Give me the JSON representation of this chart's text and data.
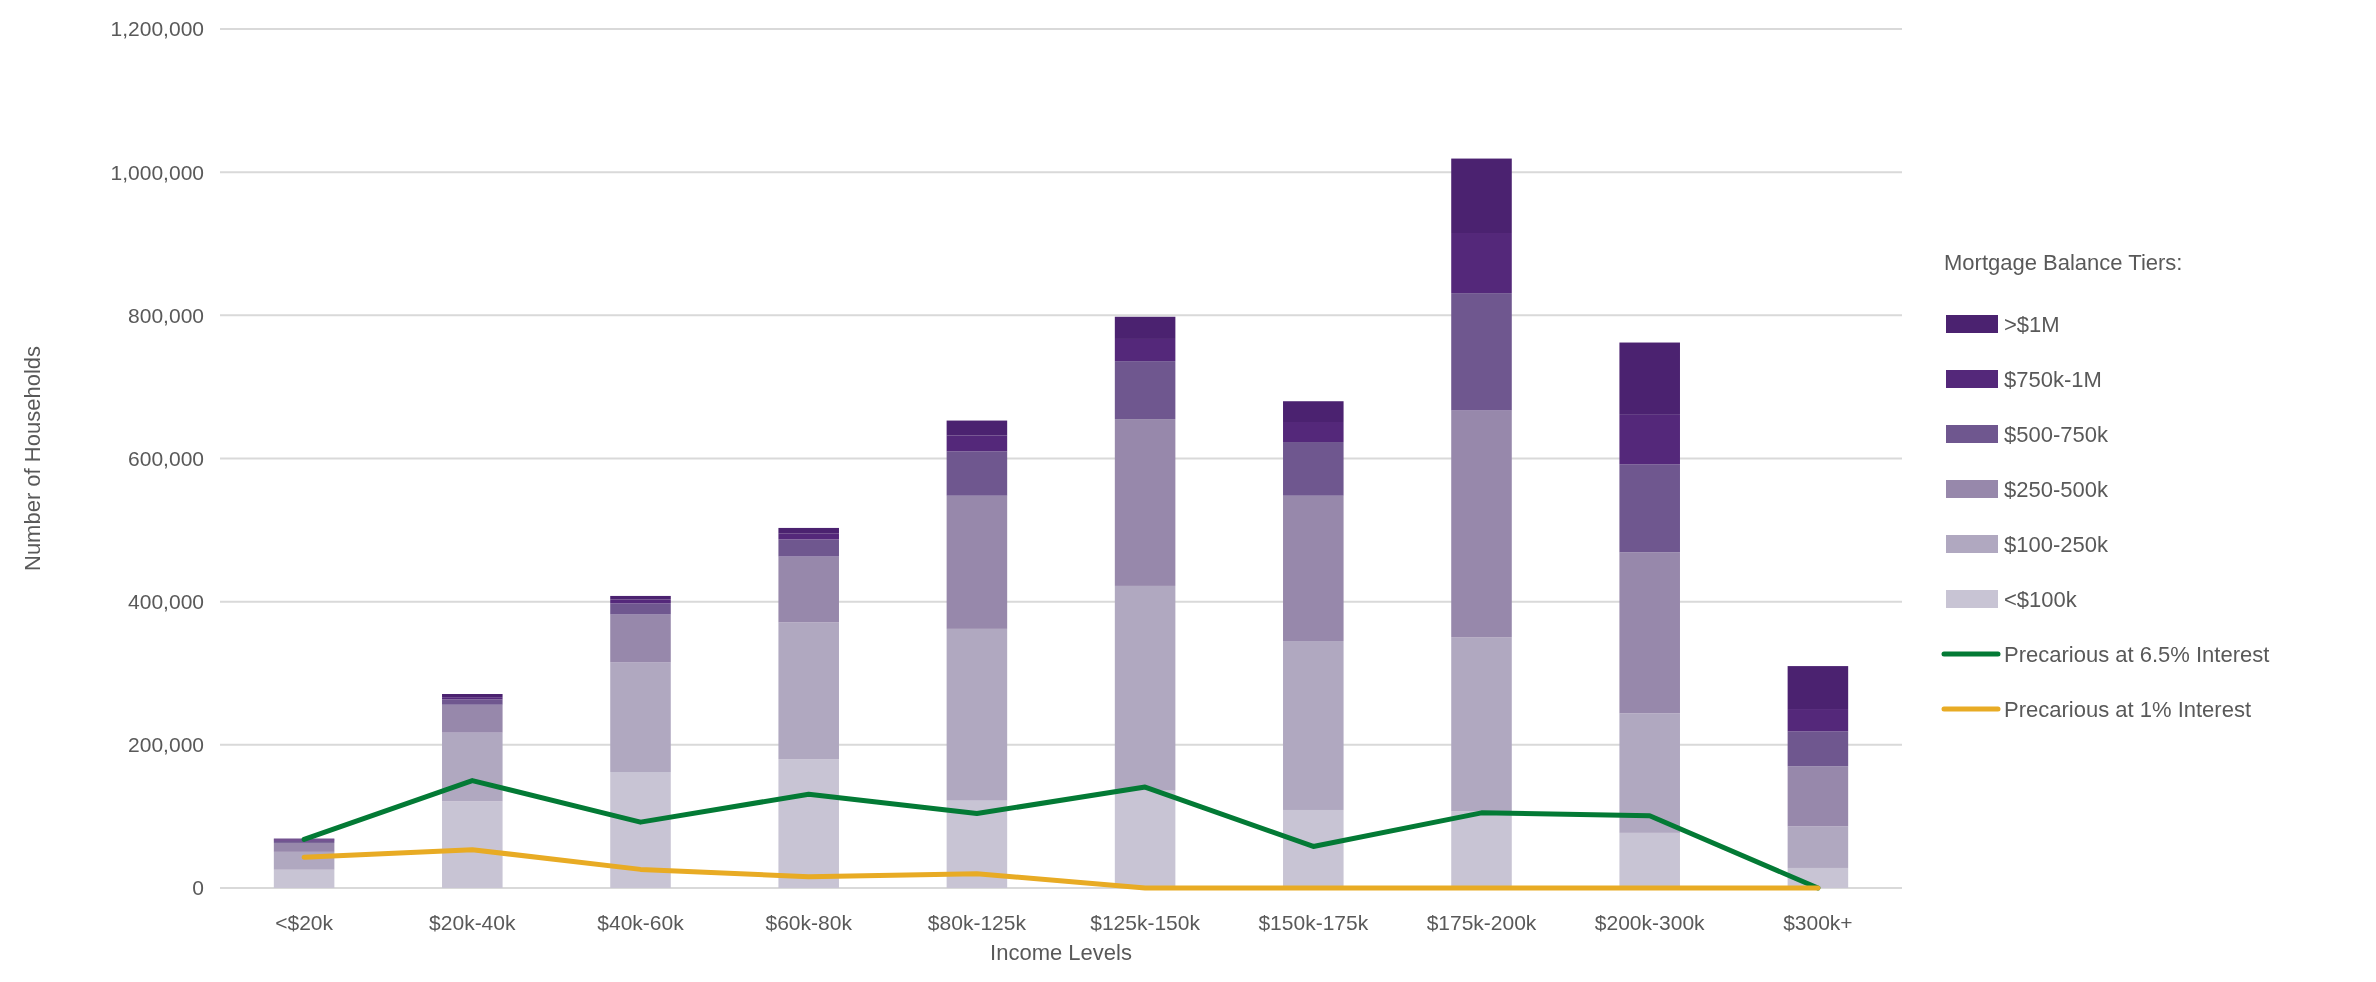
{
  "chart_data": {
    "type": "bar",
    "stacked": true,
    "xlabel": "Income Levels",
    "ylabel": "Number of Households",
    "legend_title": "Mortgage Balance Tiers:",
    "legend": "right",
    "grid": "y",
    "categories": [
      "<$20k",
      "$20k-40k",
      "$40k-60k",
      "$60k-80k",
      "$80k-125k",
      "$125k-150k",
      "$150k-175k",
      "$175k-200k",
      "$200k-300k",
      "$300k+"
    ],
    "ylim": [
      0,
      1200000
    ],
    "yticks": [
      {
        "value": 0,
        "label": "0"
      },
      {
        "value": 200000,
        "label": "200,000"
      },
      {
        "value": 400000,
        "label": "400,000"
      },
      {
        "value": 600000,
        "label": "600,000"
      },
      {
        "value": 800000,
        "label": "800,000"
      },
      {
        "value": 1000000,
        "label": "1,000,000"
      },
      {
        "value": 1200000,
        "label": "1,200,000"
      }
    ],
    "series": [
      {
        "name": "<$100k",
        "color": "#c8c4d4",
        "values": [
          25500,
          121000,
          162000,
          180000,
          122000,
          136000,
          109000,
          107000,
          77000,
          28000
        ]
      },
      {
        "name": "$100-250k",
        "color": "#b0a8c0",
        "values": [
          25000,
          96000,
          153000,
          191000,
          240000,
          286000,
          236000,
          243000,
          167000,
          58000
        ]
      },
      {
        "name": "$250-500k",
        "color": "#9788ab",
        "values": [
          12500,
          39000,
          67000,
          92000,
          186000,
          233000,
          203000,
          317000,
          225000,
          84000
        ]
      },
      {
        "name": "$500-750k",
        "color": "#6f578f",
        "values": [
          3000,
          7500,
          15500,
          24000,
          62000,
          81000,
          75000,
          164000,
          123000,
          49000
        ]
      },
      {
        "name": "$750k-1M",
        "color": "#54287a",
        "values": [
          1500,
          3000,
          5500,
          8000,
          22000,
          31000,
          28000,
          84000,
          69000,
          31000
        ]
      },
      {
        "name": ">$1M",
        "color": "#4b2270",
        "values": [
          1500,
          4500,
          5000,
          8000,
          21000,
          31000,
          29000,
          104000,
          101000,
          60000
        ]
      },
      {
        "name": "Precarious at 6.5% Interest",
        "type": "line",
        "color": "#037a35",
        "values": [
          68000,
          150000,
          92000,
          131000,
          104000,
          141000,
          58000,
          105000,
          101000,
          0
        ]
      },
      {
        "name": "Precarious at 1% Interest",
        "type": "line",
        "color": "#e8ab24",
        "values": [
          43000,
          53500,
          26000,
          15600,
          20000,
          0,
          0,
          0,
          0,
          0
        ]
      }
    ]
  }
}
